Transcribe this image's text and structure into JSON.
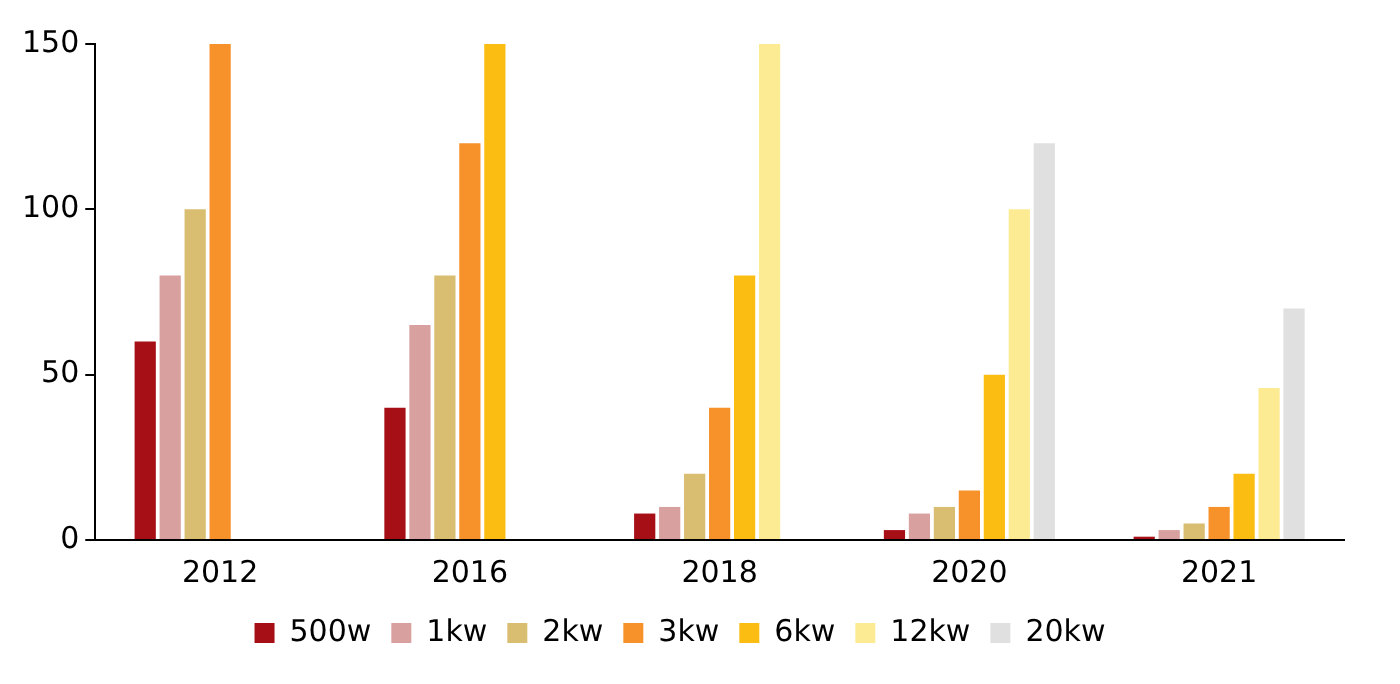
{
  "chart_data": {
    "type": "bar",
    "categories": [
      "2012",
      "2016",
      "2018",
      "2020",
      "2021"
    ],
    "series": [
      {
        "name": "500w",
        "color": "#a50f15",
        "values": [
          60,
          40,
          8,
          3,
          1
        ]
      },
      {
        "name": "1kw",
        "color": "#d9a0a0",
        "values": [
          80,
          65,
          10,
          8,
          3
        ]
      },
      {
        "name": "2kw",
        "color": "#d9bd70",
        "values": [
          100,
          80,
          20,
          10,
          5
        ]
      },
      {
        "name": "3kw",
        "color": "#f7922a",
        "values": [
          150,
          120,
          40,
          15,
          10
        ]
      },
      {
        "name": "6kw",
        "color": "#fbbd12",
        "values": [
          null,
          150,
          80,
          50,
          20
        ]
      },
      {
        "name": "12kw",
        "color": "#fdeb94",
        "values": [
          null,
          null,
          150,
          100,
          46
        ]
      },
      {
        "name": "20kw",
        "color": "#e0e0e0",
        "values": [
          null,
          null,
          null,
          120,
          70
        ]
      }
    ],
    "ylim": [
      0,
      150
    ],
    "yticks": [
      0,
      50,
      100,
      150
    ],
    "grid": false,
    "legend": "bottom"
  }
}
